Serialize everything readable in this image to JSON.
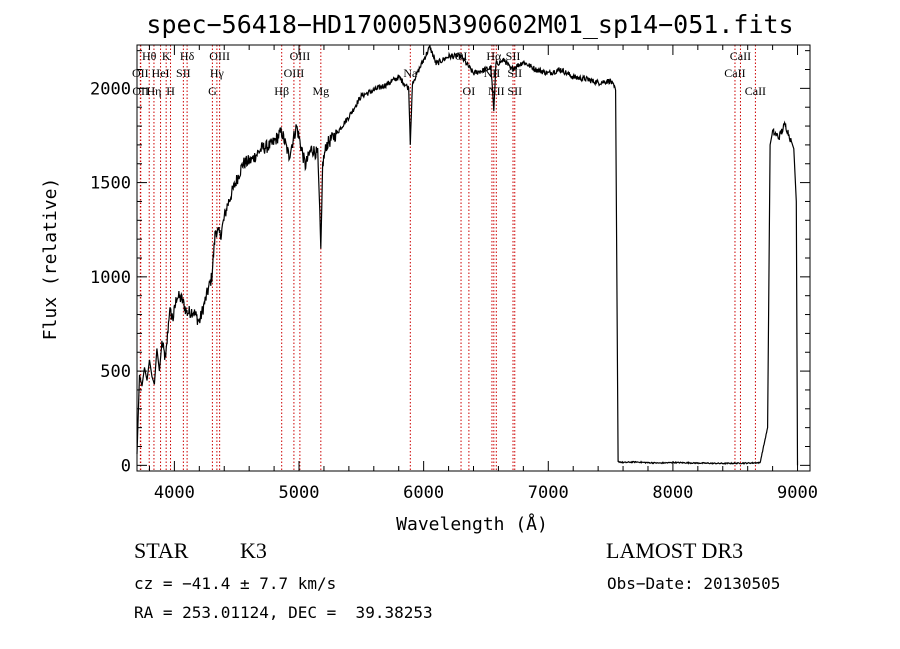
{
  "title": "spec−56418−HD170005N390602M01_sp14−051.fits",
  "info": {
    "class_label": "STAR",
    "subclass": "K3",
    "survey": "LAMOST DR3",
    "cz": "cz = −41.4 ± 7.7 km/s",
    "obs_date": "Obs−Date: 20130505",
    "radec": "RA = 253.01124, DEC =  39.38253"
  },
  "colors": {
    "spectrum": "#000000",
    "lines": "#cc0000",
    "axes": "#000000"
  },
  "chart_data": {
    "type": "line",
    "title": "spec−56418−HD170005N390602M01_sp14−051.fits",
    "xlabel": "Wavelength (Å)",
    "ylabel": "Flux (relative)",
    "xlim": [
      3700,
      9100
    ],
    "ylim": [
      -30,
      2230
    ],
    "xticks": [
      4000,
      5000,
      6000,
      7000,
      8000,
      9000
    ],
    "yticks": [
      0,
      500,
      1000,
      1500,
      2000
    ],
    "series": [
      {
        "x": [
          3700,
          3720,
          3740,
          3760,
          3780,
          3800,
          3820,
          3840,
          3860,
          3880,
          3900,
          3930,
          3960,
          3990,
          4020,
          4060,
          4100,
          4150,
          4200,
          4250,
          4300,
          4330,
          4370,
          4420,
          4480,
          4550,
          4620,
          4700,
          4780,
          4860,
          4920,
          4980,
          5050,
          5100,
          5150,
          5175,
          5190,
          5220,
          5300,
          5400,
          5500,
          5600,
          5700,
          5800,
          5880,
          5893,
          5910,
          6000,
          6050,
          6100,
          6200,
          6300,
          6400,
          6500,
          6540,
          6563,
          6580,
          6650,
          6700,
          6800,
          6900,
          7000,
          7100,
          7200,
          7300,
          7400,
          7500,
          7540,
          7560,
          7600,
          7700,
          7800,
          7900,
          8000,
          8200,
          8400,
          8600,
          8700,
          8760,
          8780,
          8800,
          8850,
          8900,
          8950,
          8970,
          8990,
          9000
        ],
        "values": [
          60,
          480,
          420,
          520,
          450,
          560,
          470,
          430,
          620,
          500,
          650,
          560,
          820,
          780,
          900,
          880,
          810,
          820,
          760,
          880,
          1000,
          1250,
          1220,
          1370,
          1480,
          1600,
          1620,
          1680,
          1700,
          1770,
          1640,
          1800,
          1590,
          1680,
          1650,
          1150,
          1600,
          1700,
          1760,
          1850,
          1960,
          1990,
          2020,
          2060,
          2000,
          1700,
          2030,
          2150,
          2220,
          2130,
          2170,
          2170,
          2080,
          2100,
          2110,
          1880,
          2130,
          2150,
          2100,
          2140,
          2100,
          2080,
          2100,
          2060,
          2050,
          2030,
          2040,
          1990,
          20,
          15,
          18,
          14,
          12,
          15,
          12,
          10,
          12,
          14,
          200,
          1700,
          1770,
          1740,
          1810,
          1720,
          1680,
          1400,
          0
        ]
      }
    ],
    "annotations": [
      {
        "label": "Hθ",
        "wavelength": 3798,
        "row": 1
      },
      {
        "label": "OII",
        "wavelength": 3727,
        "row": 2
      },
      {
        "label": "OII",
        "wavelength": 3730,
        "row": 3
      },
      {
        "label": "Hη",
        "wavelength": 3836,
        "row": 3
      },
      {
        "label": "K",
        "wavelength": 3934,
        "row": 1
      },
      {
        "label": "HeI",
        "wavelength": 3889,
        "row": 2
      },
      {
        "label": "H",
        "wavelength": 3969,
        "row": 3
      },
      {
        "label": "SII",
        "wavelength": 4072,
        "row": 2
      },
      {
        "label": "Hδ",
        "wavelength": 4102,
        "row": 1
      },
      {
        "label": "OIII",
        "wavelength": 4363,
        "row": 1
      },
      {
        "label": "Hγ",
        "wavelength": 4341,
        "row": 2
      },
      {
        "label": "G",
        "wavelength": 4305,
        "row": 3
      },
      {
        "label": "Hβ",
        "wavelength": 4861,
        "row": 3
      },
      {
        "label": "OIII",
        "wavelength": 5007,
        "row": 1
      },
      {
        "label": "OIII",
        "wavelength": 4959,
        "row": 2
      },
      {
        "label": "Mg",
        "wavelength": 5175,
        "row": 3
      },
      {
        "label": "Na",
        "wavelength": 5893,
        "row": 2
      },
      {
        "label": "OI",
        "wavelength": 6300,
        "row": 1
      },
      {
        "label": "OI",
        "wavelength": 6363,
        "row": 3
      },
      {
        "label": "Hα",
        "wavelength": 6563,
        "row": 1
      },
      {
        "label": "NII",
        "wavelength": 6548,
        "row": 2
      },
      {
        "label": "NII",
        "wavelength": 6583,
        "row": 3
      },
      {
        "label": "SII",
        "wavelength": 6717,
        "row": 1
      },
      {
        "label": "SII",
        "wavelength": 6731,
        "row": 2
      },
      {
        "label": "SII",
        "wavelength": 6731,
        "row": 3
      },
      {
        "label": "CaII",
        "wavelength": 8542,
        "row": 1
      },
      {
        "label": "CaII",
        "wavelength": 8498,
        "row": 2
      },
      {
        "label": "CaII",
        "wavelength": 8662,
        "row": 3
      }
    ]
  }
}
